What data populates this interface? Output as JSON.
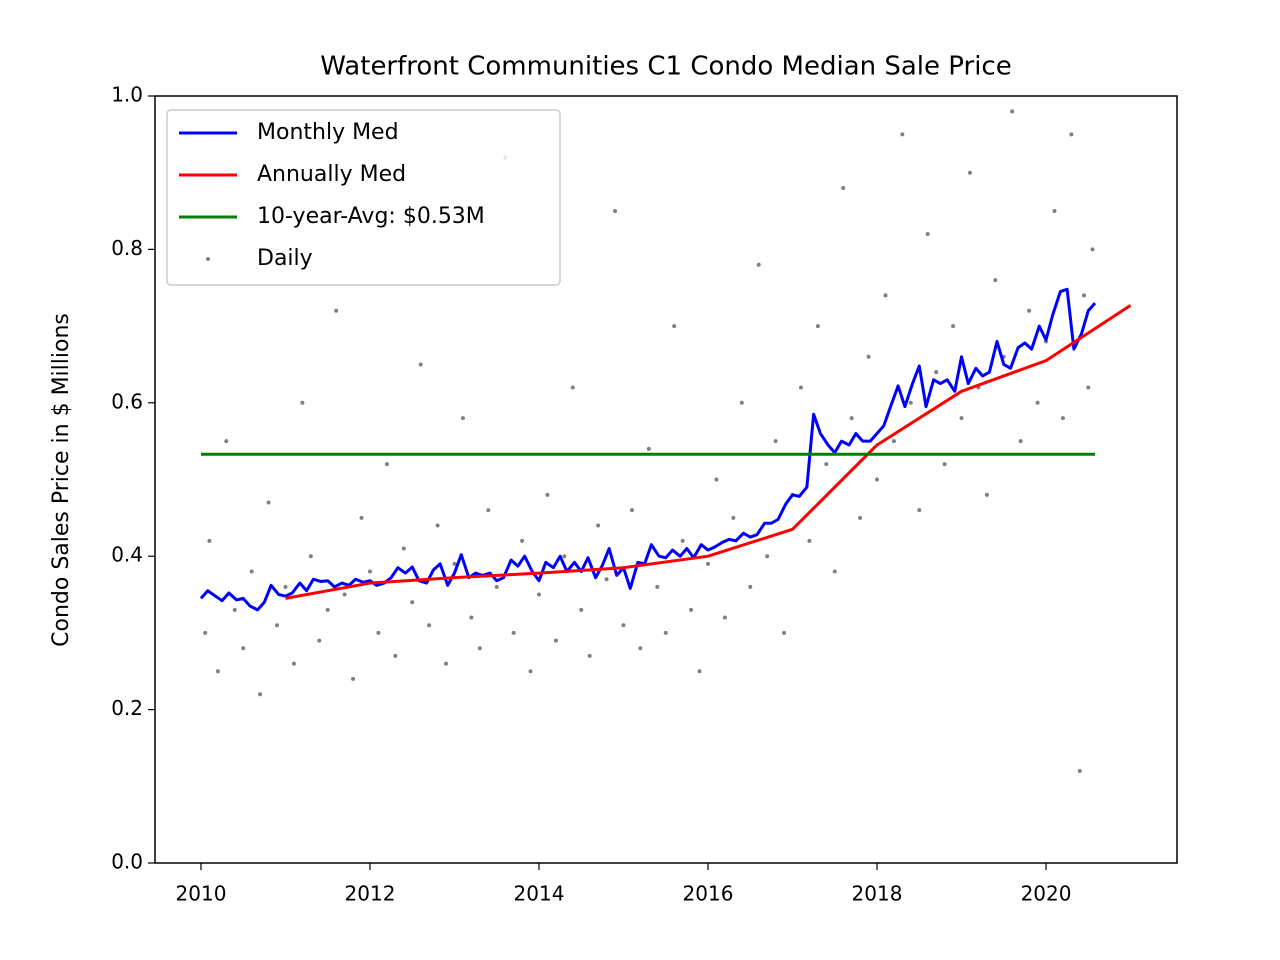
{
  "chart_data": {
    "type": "line",
    "title": "Waterfront Communities C1 Condo Median Sale Price",
    "ylabel": "Condo Sales Price in $ Millions",
    "xlim": [
      2009.456,
      2021.55
    ],
    "ylim": [
      0,
      1
    ],
    "xticks": [
      2010,
      2012,
      2014,
      2016,
      2018,
      2020
    ],
    "yticks": [
      {
        "value": 0,
        "label": "0.0"
      },
      0.2,
      0.4,
      0.6,
      0.8,
      {
        "value": 1,
        "label": "1.0"
      }
    ],
    "legend": "upper left",
    "grid": false,
    "series": [
      {
        "name": "Monthly Med",
        "type": "line",
        "color": "#0000ff",
        "x": [
          2010.0,
          2010.08,
          2010.17,
          2010.25,
          2010.33,
          2010.42,
          2010.5,
          2010.58,
          2010.67,
          2010.75,
          2010.83,
          2010.92,
          2011.0,
          2011.08,
          2011.17,
          2011.25,
          2011.33,
          2011.42,
          2011.5,
          2011.58,
          2011.67,
          2011.75,
          2011.83,
          2011.92,
          2012.0,
          2012.08,
          2012.17,
          2012.25,
          2012.33,
          2012.42,
          2012.5,
          2012.58,
          2012.67,
          2012.75,
          2012.83,
          2012.92,
          2013.0,
          2013.08,
          2013.17,
          2013.25,
          2013.33,
          2013.42,
          2013.5,
          2013.58,
          2013.67,
          2013.75,
          2013.83,
          2013.92,
          2014.0,
          2014.08,
          2014.17,
          2014.25,
          2014.33,
          2014.42,
          2014.5,
          2014.58,
          2014.67,
          2014.75,
          2014.83,
          2014.92,
          2015.0,
          2015.08,
          2015.17,
          2015.25,
          2015.33,
          2015.42,
          2015.5,
          2015.58,
          2015.67,
          2015.75,
          2015.83,
          2015.92,
          2016.0,
          2016.08,
          2016.17,
          2016.25,
          2016.33,
          2016.42,
          2016.5,
          2016.58,
          2016.67,
          2016.75,
          2016.83,
          2016.92,
          2017.0,
          2017.08,
          2017.17,
          2017.25,
          2017.33,
          2017.42,
          2017.5,
          2017.58,
          2017.67,
          2017.75,
          2017.83,
          2017.92,
          2018.0,
          2018.08,
          2018.17,
          2018.25,
          2018.33,
          2018.42,
          2018.5,
          2018.58,
          2018.67,
          2018.75,
          2018.83,
          2018.92,
          2019.0,
          2019.08,
          2019.17,
          2019.25,
          2019.33,
          2019.42,
          2019.5,
          2019.58,
          2019.67,
          2019.75,
          2019.83,
          2019.92,
          2020.0,
          2020.08,
          2020.17,
          2020.25,
          2020.33,
          2020.42,
          2020.5,
          2020.58
        ],
        "values": [
          0.345,
          0.355,
          0.348,
          0.342,
          0.352,
          0.343,
          0.345,
          0.335,
          0.33,
          0.34,
          0.362,
          0.35,
          0.348,
          0.352,
          0.365,
          0.355,
          0.37,
          0.367,
          0.368,
          0.36,
          0.365,
          0.362,
          0.37,
          0.366,
          0.368,
          0.362,
          0.365,
          0.372,
          0.385,
          0.378,
          0.386,
          0.368,
          0.365,
          0.382,
          0.39,
          0.362,
          0.378,
          0.402,
          0.372,
          0.378,
          0.375,
          0.378,
          0.368,
          0.372,
          0.395,
          0.387,
          0.4,
          0.38,
          0.368,
          0.392,
          0.385,
          0.4,
          0.38,
          0.392,
          0.38,
          0.398,
          0.372,
          0.388,
          0.41,
          0.375,
          0.385,
          0.358,
          0.392,
          0.39,
          0.415,
          0.4,
          0.398,
          0.408,
          0.4,
          0.41,
          0.398,
          0.415,
          0.408,
          0.412,
          0.418,
          0.422,
          0.42,
          0.43,
          0.425,
          0.428,
          0.443,
          0.443,
          0.448,
          0.468,
          0.48,
          0.478,
          0.49,
          0.585,
          0.56,
          0.545,
          0.535,
          0.55,
          0.545,
          0.56,
          0.55,
          0.55,
          0.56,
          0.57,
          0.598,
          0.622,
          0.595,
          0.625,
          0.648,
          0.595,
          0.63,
          0.625,
          0.63,
          0.615,
          0.66,
          0.625,
          0.645,
          0.635,
          0.64,
          0.68,
          0.65,
          0.645,
          0.672,
          0.678,
          0.67,
          0.7,
          0.682,
          0.715,
          0.745,
          0.748,
          0.67,
          0.69,
          0.72,
          0.73
        ]
      },
      {
        "name": "Annually Med",
        "type": "line",
        "color": "#ff0000",
        "x": [
          2011,
          2012,
          2013,
          2014,
          2015,
          2016,
          2017,
          2018,
          2019,
          2020,
          2021
        ],
        "values": [
          0.345,
          0.365,
          0.372,
          0.378,
          0.385,
          0.4,
          0.435,
          0.545,
          0.615,
          0.655,
          0.727
        ]
      },
      {
        "name": "10-year-Avg: $0.53M",
        "type": "line",
        "color": "#008000",
        "x": [
          2010.0,
          2020.58
        ],
        "values": [
          0.533,
          0.533
        ]
      },
      {
        "name": "Daily",
        "type": "scatter",
        "color": "#808080",
        "x": [
          2010.05,
          2010.1,
          2010.2,
          2010.3,
          2010.4,
          2010.5,
          2010.6,
          2010.7,
          2010.8,
          2010.9,
          2011.0,
          2011.1,
          2011.2,
          2011.3,
          2011.4,
          2011.5,
          2011.6,
          2011.7,
          2011.8,
          2011.9,
          2012.0,
          2012.1,
          2012.2,
          2012.3,
          2012.4,
          2012.5,
          2012.6,
          2012.7,
          2012.8,
          2012.9,
          2013.0,
          2013.1,
          2013.2,
          2013.3,
          2013.4,
          2013.5,
          2013.6,
          2013.7,
          2013.8,
          2013.9,
          2014.0,
          2014.1,
          2014.2,
          2014.3,
          2014.4,
          2014.5,
          2014.6,
          2014.7,
          2014.8,
          2014.9,
          2015.0,
          2015.1,
          2015.2,
          2015.3,
          2015.4,
          2015.5,
          2015.6,
          2015.7,
          2015.8,
          2015.9,
          2016.0,
          2016.1,
          2016.2,
          2016.3,
          2016.4,
          2016.5,
          2016.6,
          2016.7,
          2016.8,
          2016.9,
          2017.0,
          2017.1,
          2017.2,
          2017.3,
          2017.4,
          2017.5,
          2017.6,
          2017.7,
          2017.8,
          2017.9,
          2018.0,
          2018.1,
          2018.2,
          2018.3,
          2018.4,
          2018.5,
          2018.6,
          2018.7,
          2018.8,
          2018.9,
          2019.0,
          2019.1,
          2019.2,
          2019.3,
          2019.4,
          2019.5,
          2019.6,
          2019.7,
          2019.8,
          2019.9,
          2020.0,
          2020.1,
          2020.2,
          2020.3,
          2020.4,
          2020.45,
          2020.5,
          2020.55
        ],
        "values": [
          0.3,
          0.42,
          0.25,
          0.55,
          0.33,
          0.28,
          0.38,
          0.22,
          0.47,
          0.31,
          0.36,
          0.26,
          0.6,
          0.4,
          0.29,
          0.33,
          0.72,
          0.35,
          0.24,
          0.45,
          0.38,
          0.3,
          0.52,
          0.27,
          0.41,
          0.34,
          0.65,
          0.31,
          0.44,
          0.26,
          0.39,
          0.58,
          0.32,
          0.28,
          0.46,
          0.36,
          0.92,
          0.3,
          0.42,
          0.25,
          0.35,
          0.48,
          0.29,
          0.4,
          0.62,
          0.33,
          0.27,
          0.44,
          0.37,
          0.85,
          0.31,
          0.46,
          0.28,
          0.54,
          0.36,
          0.3,
          0.7,
          0.42,
          0.33,
          0.25,
          0.39,
          0.5,
          0.32,
          0.45,
          0.6,
          0.36,
          0.78,
          0.4,
          0.55,
          0.3,
          0.48,
          0.62,
          0.42,
          0.7,
          0.52,
          0.38,
          0.88,
          0.58,
          0.45,
          0.66,
          0.5,
          0.74,
          0.55,
          0.95,
          0.6,
          0.46,
          0.82,
          0.64,
          0.52,
          0.7,
          0.58,
          0.9,
          0.62,
          0.48,
          0.76,
          0.66,
          0.98,
          0.55,
          0.72,
          0.6,
          0.68,
          0.85,
          0.58,
          0.95,
          0.12,
          0.74,
          0.62,
          0.8
        ]
      }
    ]
  }
}
